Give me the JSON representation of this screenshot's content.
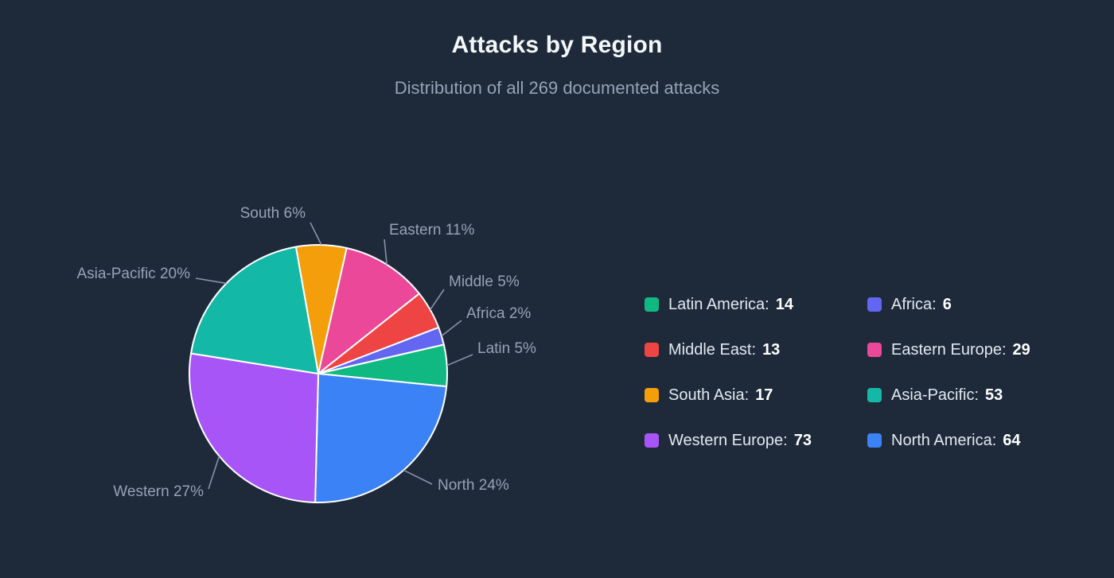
{
  "header": {
    "title": "Attacks by Region",
    "subtitle": "Distribution of all 269 documented attacks"
  },
  "chart_data": {
    "type": "pie",
    "title": "Attacks by Region",
    "subtitle": "Distribution of all 269 documented attacks",
    "total": 269,
    "legend_position": "right",
    "start_angle_deg": 100,
    "direction": "clockwise",
    "slices": [
      {
        "name": "South Asia",
        "short_label": "South 6%",
        "value": 17,
        "pct": 6,
        "color": "#f59e0b"
      },
      {
        "name": "Eastern Europe",
        "short_label": "Eastern 11%",
        "value": 29,
        "pct": 11,
        "color": "#ec4899"
      },
      {
        "name": "Middle East",
        "short_label": "Middle 5%",
        "value": 13,
        "pct": 5,
        "color": "#ef4444"
      },
      {
        "name": "Africa",
        "short_label": "Africa 2%",
        "value": 6,
        "pct": 2,
        "color": "#6366f1"
      },
      {
        "name": "Latin America",
        "short_label": "Latin 5%",
        "value": 14,
        "pct": 5,
        "color": "#10b981"
      },
      {
        "name": "North America",
        "short_label": "North 24%",
        "value": 64,
        "pct": 24,
        "color": "#3b82f6"
      },
      {
        "name": "Western Europe",
        "short_label": "Western 27%",
        "value": 73,
        "pct": 27,
        "color": "#a855f7"
      },
      {
        "name": "Asia-Pacific",
        "short_label": "Asia-Pacific 20%",
        "value": 53,
        "pct": 20,
        "color": "#14b8a6"
      }
    ],
    "legend": [
      {
        "label": "Latin America",
        "value": 14,
        "color": "#10b981"
      },
      {
        "label": "Africa",
        "value": 6,
        "color": "#6366f1"
      },
      {
        "label": "Middle East",
        "value": 13,
        "color": "#ef4444"
      },
      {
        "label": "Eastern Europe",
        "value": 29,
        "color": "#ec4899"
      },
      {
        "label": "South Asia",
        "value": 17,
        "color": "#f59e0b"
      },
      {
        "label": "Asia-Pacific",
        "value": 53,
        "color": "#14b8a6"
      },
      {
        "label": "Western Europe",
        "value": 73,
        "color": "#a855f7"
      },
      {
        "label": "North America",
        "value": 64,
        "color": "#3b82f6"
      }
    ]
  }
}
